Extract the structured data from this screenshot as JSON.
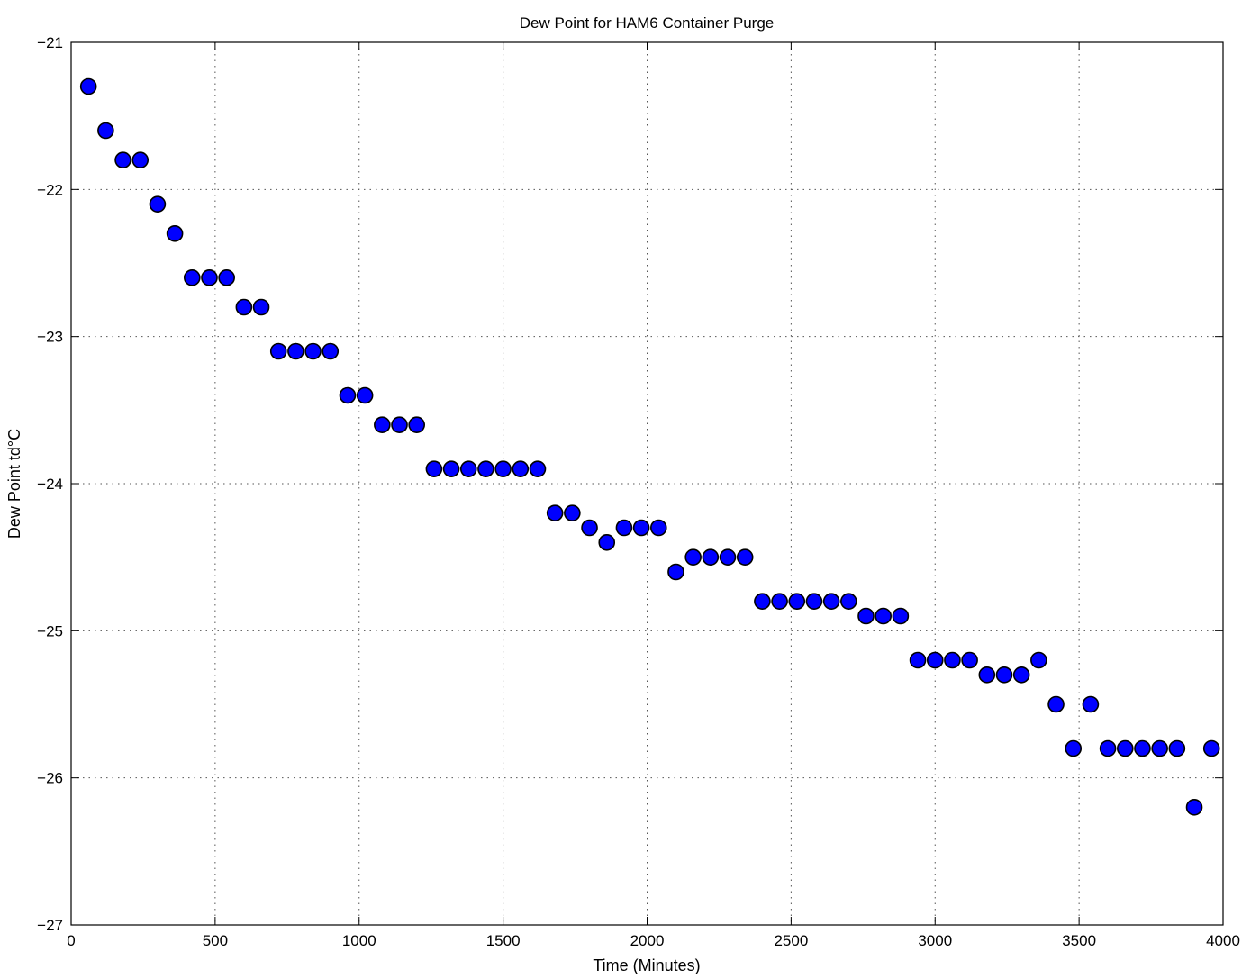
{
  "chart_data": {
    "type": "scatter",
    "title": "Dew Point for HAM6 Container Purge",
    "xlabel": "Time (Minutes)",
    "ylabel": "Dew Point td°C",
    "xlim": [
      0,
      4000
    ],
    "ylim": [
      -27,
      -21
    ],
    "xticks": [
      0,
      500,
      1000,
      1500,
      2000,
      2500,
      3000,
      3500,
      4000
    ],
    "yticks": [
      -21,
      -22,
      -23,
      -24,
      -25,
      -26,
      -27
    ],
    "xtick_labels": [
      "0",
      "500",
      "1000",
      "1500",
      "2000",
      "2500",
      "3000",
      "3500",
      "4000"
    ],
    "ytick_labels": [
      "−21",
      "−22",
      "−23",
      "−24",
      "−25",
      "−26",
      "−27"
    ],
    "grid": true,
    "marker_color": "#0000ff",
    "marker_edge_color": "#000000",
    "series": [
      {
        "x": [
          60,
          120,
          180,
          240,
          300,
          360,
          420,
          480,
          540,
          600,
          660,
          720,
          780,
          840,
          900,
          960,
          1020,
          1080,
          1140,
          1200,
          1260,
          1320,
          1380,
          1440,
          1500,
          1560,
          1620,
          1680,
          1740,
          1800,
          1860,
          1920,
          1980,
          2040,
          2100,
          2160,
          2220,
          2280,
          2340,
          2400,
          2460,
          2520,
          2580,
          2640,
          2700,
          2760,
          2820,
          2880,
          2940,
          3000,
          3060,
          3120,
          3180,
          3240,
          3300,
          3360,
          3420,
          3480,
          3540,
          3600,
          3660,
          3720,
          3780,
          3840,
          3900,
          3960
        ],
        "y": [
          -21.3,
          -21.6,
          -21.8,
          -21.8,
          -22.1,
          -22.3,
          -22.6,
          -22.6,
          -22.6,
          -22.8,
          -22.8,
          -23.1,
          -23.1,
          -23.1,
          -23.1,
          -23.4,
          -23.4,
          -23.6,
          -23.6,
          -23.6,
          -23.9,
          -23.9,
          -23.9,
          -23.9,
          -23.9,
          -23.9,
          -23.9,
          -24.2,
          -24.2,
          -24.3,
          -24.4,
          -24.3,
          -24.3,
          -24.3,
          -24.6,
          -24.5,
          -24.5,
          -24.5,
          -24.5,
          -24.8,
          -24.8,
          -24.8,
          -24.8,
          -24.8,
          -24.8,
          -24.9,
          -24.9,
          -24.9,
          -25.2,
          -25.2,
          -25.2,
          -25.2,
          -25.3,
          -25.3,
          -25.3,
          -25.2,
          -25.5,
          -25.8,
          -25.5,
          -25.8,
          -25.8,
          -25.8,
          -25.8,
          -25.8,
          -26.2,
          -25.8
        ]
      }
    ]
  }
}
